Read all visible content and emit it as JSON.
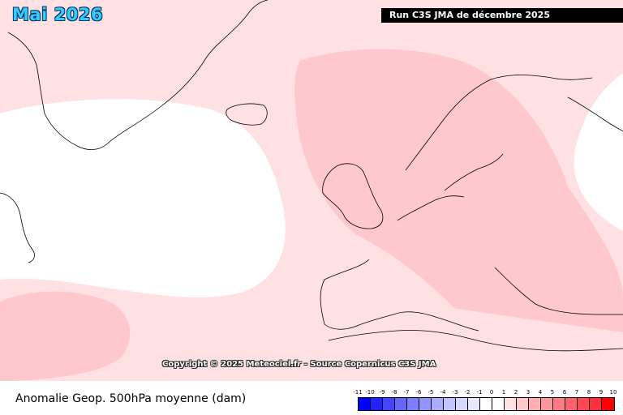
{
  "header": {
    "month_title": "Mai 2026",
    "run_label": "Run C3S JMA de décembre 2025"
  },
  "map": {
    "copyright": "Copyright © 2025 Meteociel.fr - Source Copernicus C3S JMA",
    "colors": {
      "background_anomaly": "#ffe0e3",
      "neutral_anomaly": "#ffffff",
      "positive_anomaly": "#ffc8cc",
      "coastline": "#000000"
    }
  },
  "footer": {
    "field_title": "Anomalie Geop. 500hPa moyenne (dam)"
  },
  "legend": {
    "labels": [
      "-11",
      "-10",
      "-9",
      "-8",
      "-7",
      "-6",
      "-5",
      "-4",
      "-3",
      "-2",
      "-1",
      "0",
      "1",
      "2",
      "3",
      "4",
      "5",
      "6",
      "7",
      "8",
      "9",
      "10"
    ],
    "colors": [
      "#0000ff",
      "#2222ff",
      "#4444ff",
      "#6666ff",
      "#7d7dff",
      "#9494ff",
      "#ababff",
      "#c2c2ff",
      "#d6d6ff",
      "#e8e8ff",
      "#ffffff",
      "#ffffff",
      "#ffe0e3",
      "#ffc8cc",
      "#ffaeb4",
      "#ff959c",
      "#ff7b84",
      "#ff626c",
      "#ff4854",
      "#ff2f3c",
      "#ff0000"
    ]
  }
}
